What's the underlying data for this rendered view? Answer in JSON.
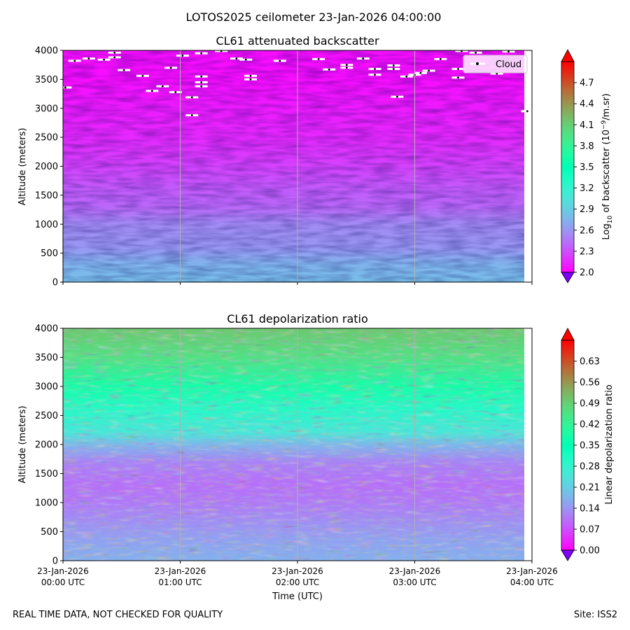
{
  "figure": {
    "suptitle": "LOTOS2025 ceilometer 23-Jan-2026 04:00:00",
    "footer_left": "REAL TIME DATA, NOT CHECKED FOR QUALITY",
    "footer_right": "Site: ISS2",
    "xlabel": "Time (UTC)"
  },
  "chart_data": [
    {
      "type": "heatmap",
      "title": "CL61 attenuated backscatter",
      "ylabel": "Altitude (meters)",
      "ylim": [
        0,
        4000
      ],
      "yticks": [
        "0",
        "500",
        "1000",
        "1500",
        "2000",
        "2500",
        "3000",
        "3500",
        "4000"
      ],
      "x_ticks": [
        {
          "date": "23-Jan-2026",
          "time": "00:00 UTC"
        },
        {
          "date": "23-Jan-2026",
          "time": "01:00 UTC"
        },
        {
          "date": "23-Jan-2026",
          "time": "02:00 UTC"
        },
        {
          "date": "23-Jan-2026",
          "time": "03:00 UTC"
        },
        {
          "date": "23-Jan-2026",
          "time": "04:00 UTC"
        }
      ],
      "x_range": [
        "23-Jan-2026 00:00 UTC",
        "23-Jan-2026 04:00 UTC"
      ],
      "grid": "x-only",
      "colormap": "rainbow",
      "colorbar": {
        "label_pre": "Log",
        "label_sub": "10",
        "label_mid": " of backscatter (10",
        "label_sup": "−9",
        "label_post": "/m.sr)",
        "range": [
          2.0,
          5.0
        ],
        "ticks": [
          "2.0",
          "2.3",
          "2.6",
          "2.9",
          "3.2",
          "3.5",
          "3.8",
          "4.1",
          "4.4",
          "4.7"
        ]
      },
      "profile": {
        "altitude_m": [
          0,
          300,
          600,
          1000,
          1300,
          1600,
          2000,
          2500,
          3000,
          3500,
          4000
        ],
        "log10_backscatter": [
          2.8,
          2.75,
          2.6,
          2.55,
          2.4,
          2.35,
          2.25,
          2.15,
          2.1,
          2.05,
          2.05
        ]
      },
      "legend": {
        "label": "Cloud",
        "position": "top-right"
      },
      "cloud_hits": [
        {
          "t_h": 0.02,
          "alt_m": 3360
        },
        {
          "t_h": 0.1,
          "alt_m": 3820
        },
        {
          "t_h": 0.22,
          "alt_m": 3860
        },
        {
          "t_h": 0.35,
          "alt_m": 3840
        },
        {
          "t_h": 0.44,
          "alt_m": 3960
        },
        {
          "t_h": 0.44,
          "alt_m": 3880
        },
        {
          "t_h": 0.52,
          "alt_m": 3660
        },
        {
          "t_h": 0.68,
          "alt_m": 3560
        },
        {
          "t_h": 0.76,
          "alt_m": 3300
        },
        {
          "t_h": 0.85,
          "alt_m": 3380
        },
        {
          "t_h": 0.92,
          "alt_m": 3700
        },
        {
          "t_h": 0.96,
          "alt_m": 3280
        },
        {
          "t_h": 1.02,
          "alt_m": 3910
        },
        {
          "t_h": 1.1,
          "alt_m": 3190
        },
        {
          "t_h": 1.1,
          "alt_m": 2880
        },
        {
          "t_h": 1.18,
          "alt_m": 3950
        },
        {
          "t_h": 1.18,
          "alt_m": 3550
        },
        {
          "t_h": 1.18,
          "alt_m": 3450
        },
        {
          "t_h": 1.18,
          "alt_m": 3380
        },
        {
          "t_h": 1.35,
          "alt_m": 3990
        },
        {
          "t_h": 1.48,
          "alt_m": 3860
        },
        {
          "t_h": 1.56,
          "alt_m": 3840
        },
        {
          "t_h": 1.6,
          "alt_m": 3560
        },
        {
          "t_h": 1.6,
          "alt_m": 3500
        },
        {
          "t_h": 1.85,
          "alt_m": 3820
        },
        {
          "t_h": 2.18,
          "alt_m": 3850
        },
        {
          "t_h": 2.27,
          "alt_m": 3670
        },
        {
          "t_h": 2.42,
          "alt_m": 3750
        },
        {
          "t_h": 2.42,
          "alt_m": 3700
        },
        {
          "t_h": 2.56,
          "alt_m": 3860
        },
        {
          "t_h": 2.66,
          "alt_m": 3680
        },
        {
          "t_h": 2.66,
          "alt_m": 3580
        },
        {
          "t_h": 2.82,
          "alt_m": 3740
        },
        {
          "t_h": 2.82,
          "alt_m": 3680
        },
        {
          "t_h": 2.85,
          "alt_m": 3200
        },
        {
          "t_h": 2.93,
          "alt_m": 3550
        },
        {
          "t_h": 3.0,
          "alt_m": 3580
        },
        {
          "t_h": 3.05,
          "alt_m": 3610
        },
        {
          "t_h": 3.12,
          "alt_m": 3650
        },
        {
          "t_h": 3.22,
          "alt_m": 3850
        },
        {
          "t_h": 3.37,
          "alt_m": 3530
        },
        {
          "t_h": 3.37,
          "alt_m": 3680
        },
        {
          "t_h": 3.4,
          "alt_m": 3990
        },
        {
          "t_h": 3.52,
          "alt_m": 3960
        },
        {
          "t_h": 3.7,
          "alt_m": 3600
        },
        {
          "t_h": 3.8,
          "alt_m": 3980
        },
        {
          "t_h": 3.96,
          "alt_m": 2950
        }
      ]
    },
    {
      "type": "heatmap",
      "title": "CL61 depolarization ratio",
      "ylabel": "Altitude (meters)",
      "ylim": [
        0,
        4000
      ],
      "yticks": [
        "0",
        "500",
        "1000",
        "1500",
        "2000",
        "2500",
        "3000",
        "3500",
        "4000"
      ],
      "x_ticks": [
        {
          "date": "23-Jan-2026",
          "time": "00:00 UTC"
        },
        {
          "date": "23-Jan-2026",
          "time": "01:00 UTC"
        },
        {
          "date": "23-Jan-2026",
          "time": "02:00 UTC"
        },
        {
          "date": "23-Jan-2026",
          "time": "03:00 UTC"
        },
        {
          "date": "23-Jan-2026",
          "time": "04:00 UTC"
        }
      ],
      "x_range": [
        "23-Jan-2026 00:00 UTC",
        "23-Jan-2026 04:00 UTC"
      ],
      "grid": "x-only",
      "colormap": "rainbow",
      "colorbar": {
        "label": "Linear depolarization ratio",
        "range": [
          0.0,
          0.7
        ],
        "ticks": [
          "0.00",
          "0.07",
          "0.14",
          "0.21",
          "0.28",
          "0.35",
          "0.42",
          "0.49",
          "0.56",
          "0.63"
        ]
      },
      "profile": {
        "altitude_m": [
          0,
          400,
          1000,
          1300,
          1700,
          2000,
          2200,
          2600,
          3000,
          3500,
          4000
        ],
        "depolarization_ratio": [
          0.17,
          0.15,
          0.11,
          0.1,
          0.12,
          0.18,
          0.25,
          0.3,
          0.38,
          0.46,
          0.5
        ]
      }
    }
  ]
}
